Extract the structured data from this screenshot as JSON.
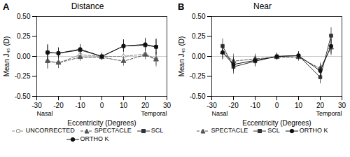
{
  "chart_data": [
    {
      "type": "line",
      "title": "Distance",
      "annotations": [
        "A",
        "Nasal",
        "Temporal"
      ],
      "x": [
        -25,
        -20,
        -10,
        0,
        10,
        20,
        25
      ],
      "xlabel": "Eccentricity (Degrees)",
      "ylabel": "Mean J₄₅ (D)",
      "xlim": [
        -30,
        30
      ],
      "xticks": [
        -30,
        -20,
        -10,
        0,
        10,
        20,
        30
      ],
      "ylim": [
        -0.5,
        0.5
      ],
      "yticks": [
        {
          "value": -0.5,
          "label": "-0.50"
        },
        {
          "value": -0.25,
          "label": "-0.25"
        },
        {
          "value": 0,
          "label": "0.00"
        },
        {
          "value": 0.25,
          "label": "0.25"
        },
        {
          "value": 0.5,
          "label": "0.50"
        }
      ],
      "legend": "bottom",
      "series": [
        {
          "name": "UNCORRECTED",
          "color": "#888888",
          "marker": "circle-open",
          "line_style": "dashed",
          "values": [
            -0.06,
            -0.08,
            0.02,
            0.0,
            0.0,
            0.03,
            -0.03
          ],
          "errors": [
            0.1,
            0.07,
            0.05,
            0.04,
            0.04,
            0.05,
            0.08
          ]
        },
        {
          "name": "SPECTACLE",
          "color": "#555555",
          "marker": "triangle",
          "line_style": "dashed",
          "values": [
            -0.06,
            -0.08,
            -0.01,
            -0.01,
            -0.06,
            0.02,
            -0.04
          ],
          "errors": [
            0.09,
            0.07,
            0.05,
            0.04,
            0.06,
            0.06,
            0.09
          ]
        },
        {
          "name": "SCL",
          "color": "#333333",
          "marker": "square",
          "line_style": "solid",
          "values": [
            0.05,
            0.04,
            0.08,
            0.0,
            0.13,
            0.14,
            0.12
          ],
          "errors": [
            0.09,
            0.06,
            0.05,
            0.04,
            0.07,
            0.07,
            0.09
          ]
        },
        {
          "name": "ORTHO K",
          "color": "#111111",
          "marker": "circle",
          "line_style": "solid",
          "values": [
            0.05,
            0.04,
            0.09,
            0.0,
            0.13,
            0.15,
            0.12
          ],
          "errors": [
            0.1,
            0.07,
            0.06,
            0.04,
            0.08,
            0.08,
            0.1
          ]
        }
      ]
    },
    {
      "type": "line",
      "title": "Near",
      "annotations": [
        "B",
        "Nasal",
        "Temporal"
      ],
      "x": [
        -25,
        -20,
        -10,
        0,
        10,
        20,
        25
      ],
      "xlabel": "Eccentricity (Degrees)",
      "ylabel": "Mean J₄₅ (D)",
      "xlim": [
        -30,
        30
      ],
      "xticks": [
        -30,
        -20,
        -10,
        0,
        10,
        20,
        30
      ],
      "ylim": [
        -0.5,
        0.5
      ],
      "yticks": [
        {
          "value": -0.5,
          "label": "-0.50"
        },
        {
          "value": -0.25,
          "label": "-0.25"
        },
        {
          "value": 0,
          "label": "0.00"
        },
        {
          "value": 0.25,
          "label": "0.25"
        },
        {
          "value": 0.5,
          "label": "0.50"
        }
      ],
      "legend": "bottom",
      "series": [
        {
          "name": "SPECTACLE",
          "color": "#555555",
          "marker": "triangle",
          "line_style": "dashed",
          "values": [
            0.05,
            -0.06,
            -0.03,
            -0.01,
            -0.01,
            -0.15,
            0.11
          ],
          "errors": [
            0.08,
            0.09,
            0.06,
            0.04,
            0.05,
            0.07,
            0.1
          ]
        },
        {
          "name": "SCL",
          "color": "#333333",
          "marker": "square",
          "line_style": "solid",
          "values": [
            0.13,
            -0.13,
            -0.06,
            0.0,
            0.01,
            -0.26,
            0.26
          ],
          "errors": [
            0.09,
            0.09,
            0.07,
            0.04,
            0.05,
            0.08,
            0.1
          ]
        },
        {
          "name": "ORTHO K",
          "color": "#111111",
          "marker": "circle",
          "line_style": "solid",
          "values": [
            0.05,
            -0.1,
            -0.05,
            0.0,
            0.01,
            -0.18,
            0.13
          ],
          "errors": [
            0.09,
            0.09,
            0.07,
            0.04,
            0.05,
            0.08,
            0.1
          ]
        }
      ]
    }
  ]
}
